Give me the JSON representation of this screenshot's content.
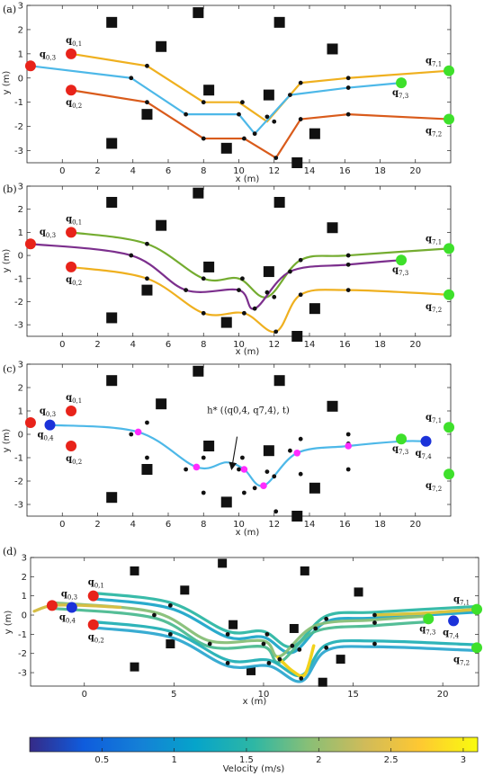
{
  "colors": {
    "red": "#e8231a",
    "green": "#3ee02b",
    "blue_marker": "#1b32d9",
    "magenta": "#ff2bff",
    "obstacle": "#111111",
    "path_a_blue": "#4db8e8",
    "path_a_yellow": "#efb01f",
    "path_a_orange": "#d95b1b",
    "path_b_green": "#74ac30",
    "path_b_purple": "#7c2f8d",
    "path_b_yellow": "#efb01f"
  },
  "legend_colorbar": {
    "label": "Velocity (m/s)",
    "range": [
      0,
      3.1
    ],
    "ticks": [
      "0.5",
      "1",
      "1.5",
      "2",
      "2.5",
      "3"
    ],
    "tick_values": [
      0.5,
      1,
      1.5,
      2,
      2.5,
      3
    ],
    "colormap": "parula"
  },
  "shared": {
    "obstacles": [
      [
        2.8,
        2.3
      ],
      [
        5.6,
        1.3
      ],
      [
        7.7,
        2.7
      ],
      [
        8.3,
        -0.5
      ],
      [
        4.8,
        -1.5
      ],
      [
        2.8,
        -2.7
      ],
      [
        9.3,
        -2.9
      ],
      [
        11.7,
        -0.7
      ],
      [
        12.3,
        2.3
      ],
      [
        13.3,
        -3.5
      ],
      [
        14.3,
        -2.3
      ],
      [
        15.3,
        1.2
      ]
    ],
    "waypoints_black": [
      [
        3.9,
        0.0
      ],
      [
        4.8,
        0.5
      ],
      [
        4.8,
        -1.0
      ],
      [
        7.0,
        -1.5
      ],
      [
        8.0,
        -1.0
      ],
      [
        8.0,
        -2.5
      ],
      [
        10.0,
        -1.5
      ],
      [
        10.2,
        -1.0
      ],
      [
        10.3,
        -2.5
      ],
      [
        10.9,
        -2.3
      ],
      [
        11.6,
        -1.6
      ],
      [
        12.1,
        -3.3
      ],
      [
        12.0,
        -1.8
      ],
      [
        12.9,
        -0.7
      ],
      [
        13.5,
        -0.2
      ],
      [
        13.5,
        -1.7
      ],
      [
        16.2,
        -0.4
      ],
      [
        16.2,
        0.0
      ],
      [
        16.2,
        -1.5
      ]
    ],
    "start_points": [
      {
        "label_base": "q",
        "label_sub": "0,1",
        "x": 0.5,
        "y": 1.0
      },
      {
        "label_base": "q",
        "label_sub": "0,2",
        "x": 0.5,
        "y": -0.5
      },
      {
        "label_base": "q",
        "label_sub": "0,3",
        "x": -1.8,
        "y": 0.5
      }
    ],
    "goal_points": [
      {
        "label_base": "q",
        "label_sub": "7,1",
        "x": 21.9,
        "y": 0.3
      },
      {
        "label_base": "q",
        "label_sub": "7,2",
        "x": 21.9,
        "y": -1.7
      },
      {
        "label_base": "q",
        "label_sub": "7,3",
        "x": 19.2,
        "y": -0.2
      }
    ]
  },
  "chart_data": [
    {
      "panel_label": "(a)",
      "type": "line",
      "xlabel": "x (m)",
      "ylabel": "y (m)",
      "xlim": [
        -2,
        22
      ],
      "ylim": [
        -3.5,
        3
      ],
      "xticks": [
        0,
        2,
        4,
        6,
        8,
        10,
        12,
        14,
        16,
        18,
        20
      ],
      "yticks": [
        -3,
        -2,
        -1,
        0,
        1,
        2,
        3
      ],
      "series": [
        {
          "color_key": "path_a_yellow",
          "smooth": false,
          "x": [
            0.5,
            4.8,
            8.0,
            10.0,
            11.6,
            13.5,
            16.2,
            21.9
          ],
          "y": [
            1.0,
            0.5,
            -1.0,
            -1.0,
            -1.8,
            -0.2,
            0.0,
            0.3
          ]
        },
        {
          "color_key": "path_a_blue",
          "smooth": false,
          "x": [
            -1.8,
            3.9,
            7.0,
            10.0,
            10.9,
            12.9,
            16.2,
            19.2
          ],
          "y": [
            0.5,
            0.0,
            -1.5,
            -1.5,
            -2.3,
            -0.7,
            -0.4,
            -0.2
          ]
        },
        {
          "color_key": "path_a_orange",
          "smooth": false,
          "x": [
            0.5,
            4.8,
            8.0,
            10.3,
            12.1,
            13.5,
            16.2,
            21.9
          ],
          "y": [
            -0.5,
            -1.0,
            -2.5,
            -2.5,
            -3.3,
            -1.7,
            -1.5,
            -1.7
          ]
        }
      ]
    },
    {
      "panel_label": "(b)",
      "type": "line",
      "xlabel": "x (m)",
      "ylabel": "y (m)",
      "xlim": [
        -2,
        22
      ],
      "ylim": [
        -3.5,
        3
      ],
      "xticks": [
        0,
        2,
        4,
        6,
        8,
        10,
        12,
        14,
        16,
        18,
        20
      ],
      "yticks": [
        -3,
        -2,
        -1,
        0,
        1,
        2,
        3
      ],
      "series": [
        {
          "color_key": "path_b_green",
          "smooth": true,
          "x": [
            0.5,
            4.8,
            8.0,
            10.0,
            11.6,
            13.5,
            16.2,
            21.9
          ],
          "y": [
            1.0,
            0.5,
            -1.0,
            -1.0,
            -1.8,
            -0.2,
            0.0,
            0.3
          ]
        },
        {
          "color_key": "path_b_purple",
          "smooth": true,
          "x": [
            -1.8,
            3.9,
            7.0,
            10.0,
            10.9,
            12.9,
            16.2,
            19.2
          ],
          "y": [
            0.5,
            0.0,
            -1.5,
            -1.5,
            -2.3,
            -0.7,
            -0.4,
            -0.2
          ]
        },
        {
          "color_key": "path_b_yellow",
          "smooth": true,
          "x": [
            0.5,
            4.8,
            8.0,
            10.3,
            12.1,
            13.5,
            16.2,
            21.9
          ],
          "y": [
            -0.5,
            -1.0,
            -2.5,
            -2.5,
            -3.3,
            -1.7,
            -1.5,
            -1.7
          ]
        }
      ]
    },
    {
      "panel_label": "(c)",
      "type": "line",
      "xlabel": "x (m)",
      "ylabel": "y (m)",
      "xlim": [
        -2,
        22
      ],
      "ylim": [
        -3.5,
        3
      ],
      "xticks": [
        0,
        2,
        4,
        6,
        8,
        10,
        12,
        14,
        16,
        18,
        20
      ],
      "yticks": [
        -3,
        -2,
        -1,
        0,
        1,
        2,
        3
      ],
      "annotation": "h* (⟨q0,4, q7,4⟩, t)",
      "annotation_arrow_to": [
        9.6,
        -1.3
      ],
      "start_blue": {
        "label_base": "q",
        "label_sub": "0,4",
        "x": -0.7,
        "y": 0.4
      },
      "goal_blue": {
        "label_base": "q",
        "label_sub": "7,4",
        "x": 20.6,
        "y": -0.3
      },
      "magenta_points": [
        [
          4.3,
          0.1
        ],
        [
          7.6,
          -1.4
        ],
        [
          10.3,
          -1.5
        ],
        [
          11.4,
          -2.2
        ],
        [
          13.3,
          -0.8
        ],
        [
          16.2,
          -0.5
        ]
      ],
      "series": [
        {
          "color_key": "path_a_blue",
          "smooth": true,
          "x": [
            -0.7,
            4.3,
            7.6,
            9.3,
            10.3,
            11.4,
            13.3,
            16.2,
            19.2,
            20.6
          ],
          "y": [
            0.4,
            0.1,
            -1.4,
            -1.2,
            -1.5,
            -2.2,
            -0.8,
            -0.5,
            -0.3,
            -0.3
          ]
        }
      ]
    },
    {
      "panel_label": "(d)",
      "type": "line",
      "xlabel": "x (m)",
      "ylabel": "y (m)",
      "xlim": [
        -3,
        22
      ],
      "ylim": [
        -3.7,
        3
      ],
      "xticks": [
        0,
        5,
        10,
        15,
        20
      ],
      "yticks": [
        -3,
        -2,
        -1,
        0,
        1,
        2,
        3
      ],
      "note": "velocity-colored trajectories (parula colormap, 0.5–3 m/s)"
    }
  ]
}
